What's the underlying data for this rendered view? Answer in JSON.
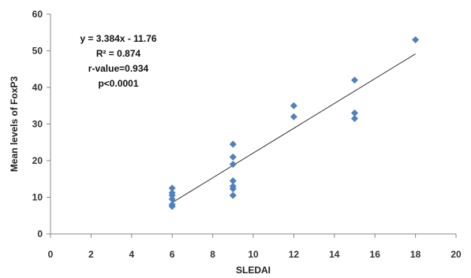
{
  "chart_data": {
    "type": "scatter",
    "xlabel": "SLEDAI",
    "ylabel": "Mean levels of FoxP3",
    "xlim": [
      0,
      20
    ],
    "ylim": [
      0,
      60
    ],
    "xticks": [
      0,
      2,
      4,
      6,
      8,
      10,
      12,
      14,
      16,
      18,
      20
    ],
    "yticks": [
      0,
      10,
      20,
      30,
      40,
      50,
      60
    ],
    "grid": false,
    "marker_color": "#4F81BD",
    "trendline_color": "#333333",
    "series": [
      {
        "points": [
          {
            "x": 6,
            "y": 12.5
          },
          {
            "x": 6,
            "y": 11.2
          },
          {
            "x": 6,
            "y": 10.5
          },
          {
            "x": 6,
            "y": 9.5
          },
          {
            "x": 6,
            "y": 8.0
          },
          {
            "x": 6,
            "y": 7.5
          },
          {
            "x": 9,
            "y": 24.5
          },
          {
            "x": 9,
            "y": 21.0
          },
          {
            "x": 9,
            "y": 19.0
          },
          {
            "x": 9,
            "y": 14.5
          },
          {
            "x": 9,
            "y": 13.0
          },
          {
            "x": 9,
            "y": 12.3
          },
          {
            "x": 9,
            "y": 10.5
          },
          {
            "x": 12,
            "y": 35.0
          },
          {
            "x": 12,
            "y": 32.0
          },
          {
            "x": 15,
            "y": 42.0
          },
          {
            "x": 15,
            "y": 33.0
          },
          {
            "x": 15,
            "y": 31.5
          },
          {
            "x": 18,
            "y": 53.0
          }
        ]
      }
    ],
    "trendline": {
      "slope": 3.384,
      "intercept": -11.76,
      "x_start": 6,
      "x_end": 18
    },
    "annotations": [
      "y = 3.384x - 11.76",
      "R² = 0.874",
      "r-value=0.934",
      "p<0.0001"
    ]
  }
}
